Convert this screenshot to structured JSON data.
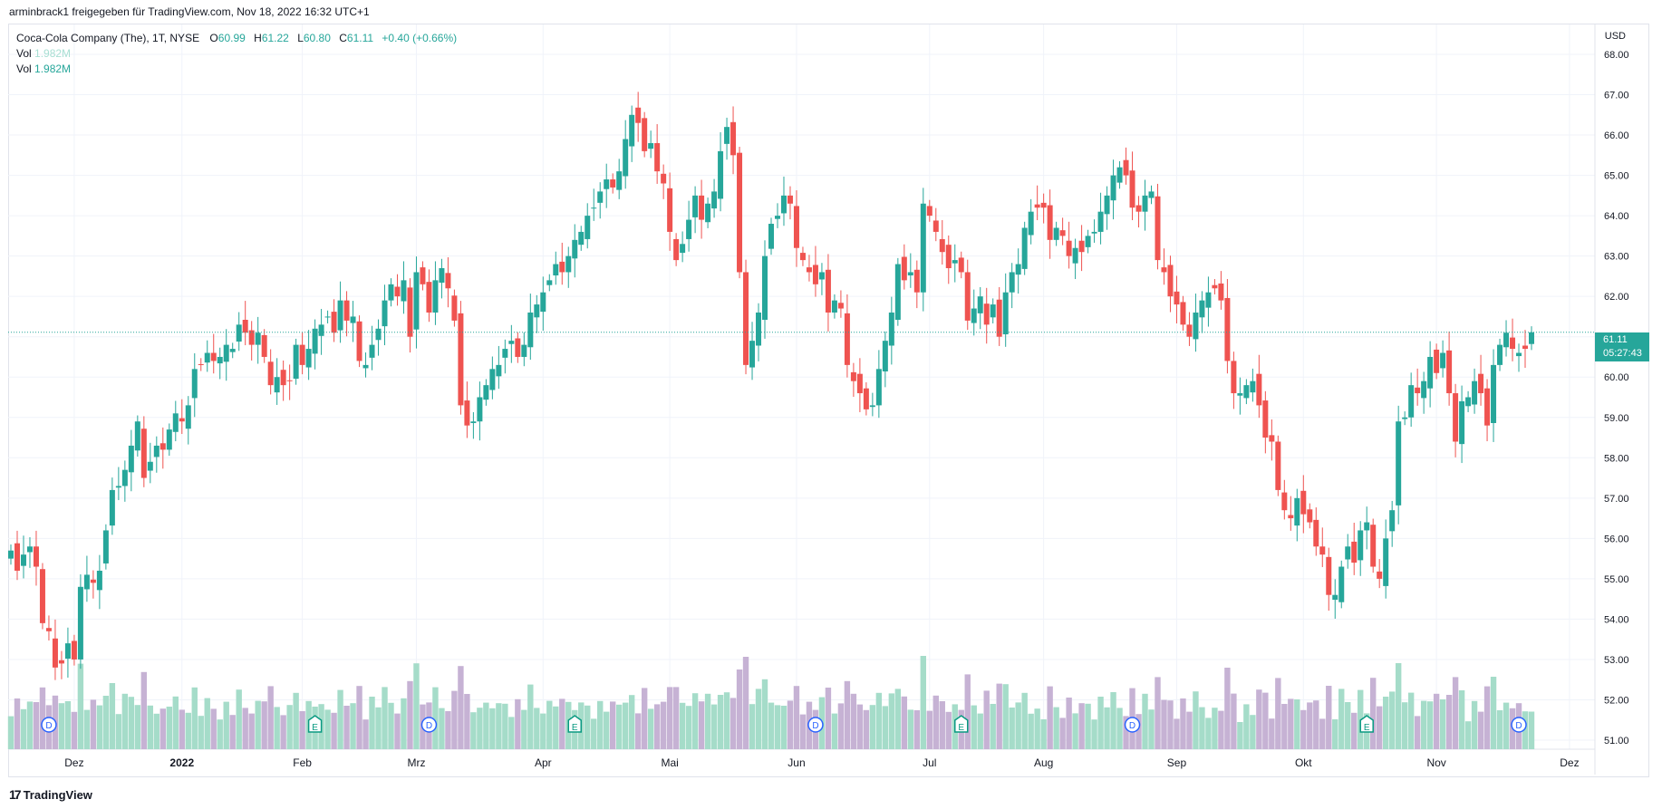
{
  "header": {
    "caption": "arminbrack1 freigegeben für TradingView.com, Nov 18, 2022 16:32 UTC+1"
  },
  "legend": {
    "symbol": "Coca-Cola Company (The), 1T, NYSE",
    "o_label": "O",
    "o_value": "60.99",
    "h_label": "H",
    "h_value": "61.22",
    "l_label": "L",
    "l_value": "60.80",
    "c_label": "C",
    "c_value": "61.11",
    "change": "+0.40 (+0.66%)",
    "vol1_label": "Vol",
    "vol1_value": "1.982M",
    "vol2_label": "Vol",
    "vol2_value": "1.982M"
  },
  "price_axis": {
    "currency": "USD",
    "last_price": "61.11",
    "countdown": "05:27:43"
  },
  "footer": {
    "brand": "TradingView",
    "logo_glyph": "17"
  },
  "colors": {
    "up": "#26a69a",
    "down": "#ef5350",
    "vol_up": "#a5dcc9",
    "vol_down": "#c6b2d4",
    "grid": "#f0f3fa"
  },
  "chart_data": {
    "type": "candlestick",
    "title": "Coca-Cola Company (The), 1T, NYSE",
    "ylim": [
      51.0,
      68.0
    ],
    "y_ticks": [
      "68.00",
      "67.00",
      "66.00",
      "65.00",
      "64.00",
      "63.00",
      "62.00",
      "61.00",
      "60.00",
      "59.00",
      "58.00",
      "57.00",
      "56.00",
      "55.00",
      "54.00",
      "53.00",
      "52.00",
      "51.00"
    ],
    "x_ticks": [
      "Dez",
      "2022",
      "Feb",
      "Mrz",
      "Apr",
      "Mai",
      "Jun",
      "Jul",
      "Aug",
      "Sep",
      "Okt",
      "Nov",
      "Dez"
    ],
    "x_ticks_bold": [
      "2022"
    ],
    "x_tick_bar_index": [
      10,
      27,
      46,
      64,
      84,
      104,
      124,
      145,
      163,
      184,
      204,
      225,
      246
    ],
    "events": [
      {
        "type": "D",
        "bar": 6
      },
      {
        "type": "E",
        "bar": 48
      },
      {
        "type": "D",
        "bar": 66
      },
      {
        "type": "E",
        "bar": 89
      },
      {
        "type": "D",
        "bar": 127
      },
      {
        "type": "E",
        "bar": 150
      },
      {
        "type": "D",
        "bar": 177
      },
      {
        "type": "E",
        "bar": 214
      },
      {
        "type": "D",
        "bar": 238
      }
    ],
    "closes": [
      55.7,
      55.2,
      55.6,
      55.8,
      55.3,
      53.9,
      53.7,
      52.8,
      52.9,
      53.4,
      53.0,
      54.8,
      55.1,
      54.9,
      55.2,
      56.2,
      57.2,
      57.3,
      57.7,
      58.3,
      58.9,
      57.5,
      57.9,
      58.3,
      58.2,
      58.7,
      59.1,
      58.9,
      59.3,
      60.2,
      60.3,
      60.6,
      60.4,
      60.5,
      60.8,
      60.7,
      61.3,
      61.1,
      60.8,
      61.1,
      60.5,
      59.8,
      60.0,
      59.8,
      59.9,
      60.8,
      60.3,
      60.7,
      61.2,
      61.3,
      61.5,
      61.1,
      61.9,
      61.4,
      61.5,
      60.4,
      60.3,
      60.8,
      61.2,
      61.9,
      62.3,
      62.0,
      62.4,
      61.0,
      62.6,
      62.3,
      61.6,
      62.4,
      62.7,
      62.2,
      61.4,
      59.3,
      58.8,
      58.9,
      59.5,
      59.8,
      60.2,
      60.3,
      60.7,
      60.9,
      60.5,
      60.8,
      61.6,
      61.8,
      62.1,
      62.4,
      62.8,
      62.6,
      63.0,
      63.4,
      63.6,
      64.0,
      64.2,
      64.6,
      64.9,
      64.7,
      65.1,
      65.9,
      66.5,
      66.3,
      65.6,
      65.8,
      65.1,
      64.8,
      63.6,
      62.9,
      63.3,
      63.9,
      64.5,
      63.9,
      64.3,
      64.6,
      65.6,
      66.2,
      65.5,
      62.6,
      60.3,
      60.9,
      61.6,
      63.0,
      63.8,
      64.0,
      64.5,
      64.3,
      63.2,
      62.9,
      62.6,
      62.3,
      62.6,
      61.6,
      61.9,
      61.7,
      60.3,
      59.9,
      59.6,
      59.2,
      59.3,
      60.2,
      60.9,
      61.6,
      62.8,
      62.4,
      62.6,
      62.1,
      64.3,
      64.0,
      63.6,
      63.1,
      62.7,
      62.9,
      62.6,
      61.4,
      61.7,
      62.0,
      61.3,
      61.8,
      61.0,
      62.1,
      62.6,
      62.8,
      63.7,
      64.1,
      64.2,
      64.2,
      63.4,
      63.7,
      63.5,
      63.0,
      63.2,
      63.1,
      63.5,
      63.6,
      64.1,
      64.5,
      65.0,
      65.2,
      65.0,
      64.2,
      64.1,
      64.5,
      64.6,
      62.9,
      62.6,
      62.0,
      61.8,
      61.3,
      61.0,
      61.6,
      61.9,
      62.1,
      62.2,
      61.9,
      60.4,
      59.6,
      59.6,
      59.8,
      59.9,
      59.3,
      58.5,
      58.4,
      57.2,
      56.7,
      56.5,
      57.0,
      56.6,
      56.4,
      55.8,
      55.6,
      54.6,
      54.6,
      55.3,
      55.8,
      55.4,
      56.2,
      56.4,
      55.3,
      55.0,
      56.0,
      56.7,
      58.9,
      59.0,
      59.8,
      59.6,
      59.9,
      60.5,
      60.1,
      60.6,
      59.6,
      58.4,
      59.4,
      59.5,
      59.9,
      59.6,
      58.8,
      60.3,
      60.8,
      61.1,
      60.7,
      60.6,
      60.7,
      61.11
    ],
    "volume_series": "relative per-bar volume shown in lower pane (green = up day, purple = down day)",
    "last_price": 61.11
  }
}
